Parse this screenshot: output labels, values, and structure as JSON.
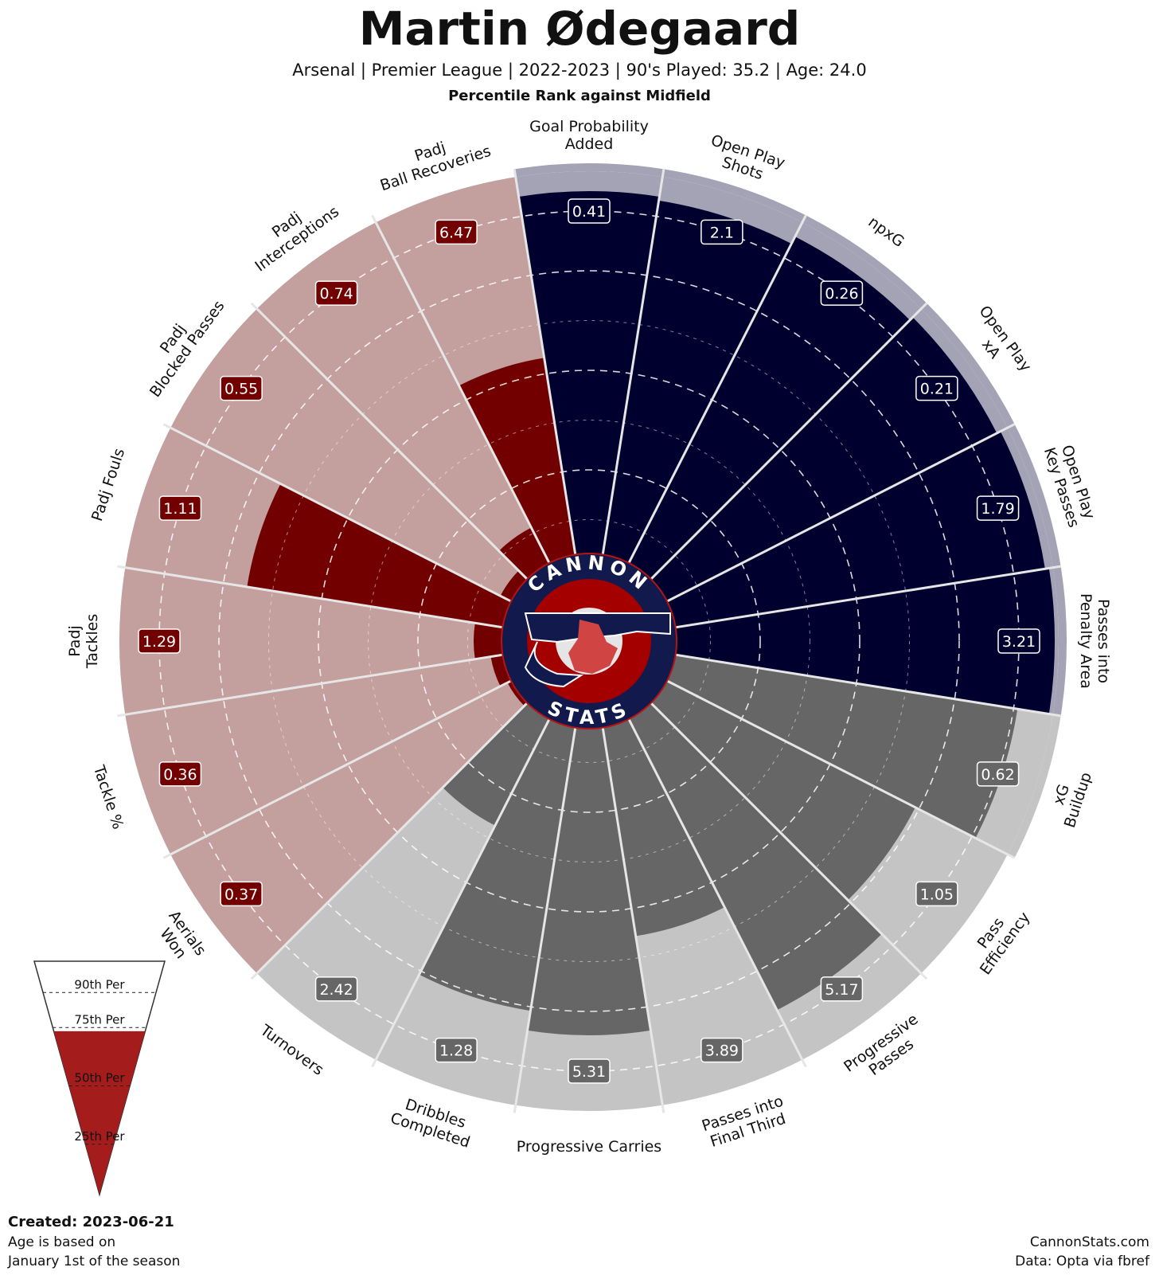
{
  "header": {
    "title": "Martin Ødegaard",
    "subtitle": "Arsenal  | Premier League | 2022-2023 | 90's Played: 35.2 | Age: 24.0",
    "subsubtitle": "Percentile Rank against Midfield"
  },
  "footer": {
    "created": "Created: 2023-06-21",
    "age_note_line1": "Age is based on",
    "age_note_line2": "January 1st of the season",
    "site": "CannonStats.com",
    "source": "Data: Opta via fbref"
  },
  "logo": {
    "top_text": "CANNON",
    "bottom_text": "STATS"
  },
  "legend": {
    "labels": [
      "90th Per",
      "75th Per",
      "50th Per",
      "25th Per"
    ],
    "fill_percentile": 70
  },
  "colors": {
    "attacking_bar": "#00002f",
    "attacking_bg": "#a4a3b5",
    "possession_bar": "#666666",
    "possession_bg": "#c4c4c4",
    "defending_bar": "#720000",
    "defending_bg": "#c39f9e",
    "legend_fill": "#a51c1c",
    "logo_navy": "#121a4d",
    "logo_red": "#b41414"
  },
  "chart_data": {
    "type": "radial-bar",
    "title": "Martin Ødegaard",
    "scale": [
      0,
      100
    ],
    "rings": [
      25,
      50,
      75,
      90
    ],
    "categories": [
      {
        "group": "attacking",
        "label": [
          "Goal Probability",
          "Added"
        ],
        "value_label": "0.41",
        "percentile": 95
      },
      {
        "group": "attacking",
        "label": [
          "Open Play",
          "Shots"
        ],
        "value_label": "2.1",
        "percentile": 94
      },
      {
        "group": "attacking",
        "label": [
          "npxG"
        ],
        "value_label": "0.26",
        "percentile": 96
      },
      {
        "group": "attacking",
        "label": [
          "Open Play",
          "xA"
        ],
        "value_label": "0.21",
        "percentile": 97
      },
      {
        "group": "attacking",
        "label": [
          "Open Play",
          "Key Passes"
        ],
        "value_label": "1.79",
        "percentile": 98
      },
      {
        "group": "attacking",
        "label": [
          "Passes into",
          "Penalty Area"
        ],
        "value_label": "3.21",
        "percentile": 99
      },
      {
        "group": "possession",
        "label": [
          "xG",
          "Buildup"
        ],
        "value_label": "0.62",
        "percentile": 91
      },
      {
        "group": "possession",
        "label": [
          "Pass",
          "Efficiency"
        ],
        "value_label": "1.05",
        "percentile": 74
      },
      {
        "group": "possession",
        "label": [
          "Progressive",
          "Passes"
        ],
        "value_label": "5.17",
        "percentile": 86
      },
      {
        "group": "possession",
        "label": [
          "Passes into",
          "Final Third"
        ],
        "value_label": "3.89",
        "percentile": 57
      },
      {
        "group": "possession",
        "label": [
          "Progressive Carries"
        ],
        "value_label": "5.31",
        "percentile": 81
      },
      {
        "group": "possession",
        "label": [
          "Dribbles",
          "Completed"
        ],
        "value_label": "1.28",
        "percentile": 76
      },
      {
        "group": "possession",
        "label": [
          "Turnovers"
        ],
        "value_label": "2.42",
        "percentile": 34
      },
      {
        "group": "defending",
        "label": [
          "Aerials",
          "Won"
        ],
        "value_label": "0.37",
        "percentile": 5
      },
      {
        "group": "defending",
        "label": [
          "Tackle %"
        ],
        "value_label": "0.36",
        "percentile": 7
      },
      {
        "group": "defending",
        "label": [
          "Padj",
          "Tackles"
        ],
        "value_label": "1.29",
        "percentile": 11
      },
      {
        "group": "defending",
        "label": [
          "Padj Fouls"
        ],
        "value_label": "1.11",
        "percentile": 69
      },
      {
        "group": "defending",
        "label": [
          "Padj",
          "Blocked Passes"
        ],
        "value_label": "0.55",
        "percentile": 7
      },
      {
        "group": "defending",
        "label": [
          "Padj",
          "Interceptions"
        ],
        "value_label": "0.74",
        "percentile": 14
      },
      {
        "group": "defending",
        "label": [
          "Padj",
          "Ball Recoveries"
        ],
        "value_label": "6.47",
        "percentile": 54
      }
    ]
  }
}
